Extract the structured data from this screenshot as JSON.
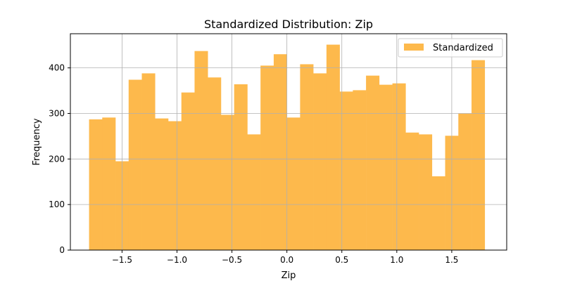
{
  "chart_data": {
    "type": "bar",
    "title": "Standardized Distribution: Zip",
    "xlabel": "Zip",
    "ylabel": "Frequency",
    "xlim": [
      -1.97,
      2.0
    ],
    "ylim": [
      0,
      475
    ],
    "xticks": [
      -1.5,
      -1.0,
      -0.5,
      0.0,
      0.5,
      1.0,
      1.5
    ],
    "xtick_labels": [
      "−1.5",
      "−1.0",
      "−0.5",
      "0.0",
      "0.5",
      "1.0",
      "1.5"
    ],
    "yticks": [
      0,
      100,
      200,
      300,
      400
    ],
    "ytick_labels": [
      "0",
      "100",
      "200",
      "300",
      "400"
    ],
    "grid": true,
    "legend_position": "top-right",
    "bin_start": -1.8,
    "bin_width": 0.12,
    "series": [
      {
        "name": "Standardized",
        "color": "#fdb94c",
        "values": [
          287,
          291,
          195,
          374,
          388,
          289,
          283,
          346,
          437,
          379,
          297,
          364,
          254,
          405,
          430,
          291,
          408,
          388,
          451,
          348,
          351,
          383,
          363,
          366,
          258,
          254,
          162,
          251,
          300,
          417
        ]
      }
    ]
  }
}
